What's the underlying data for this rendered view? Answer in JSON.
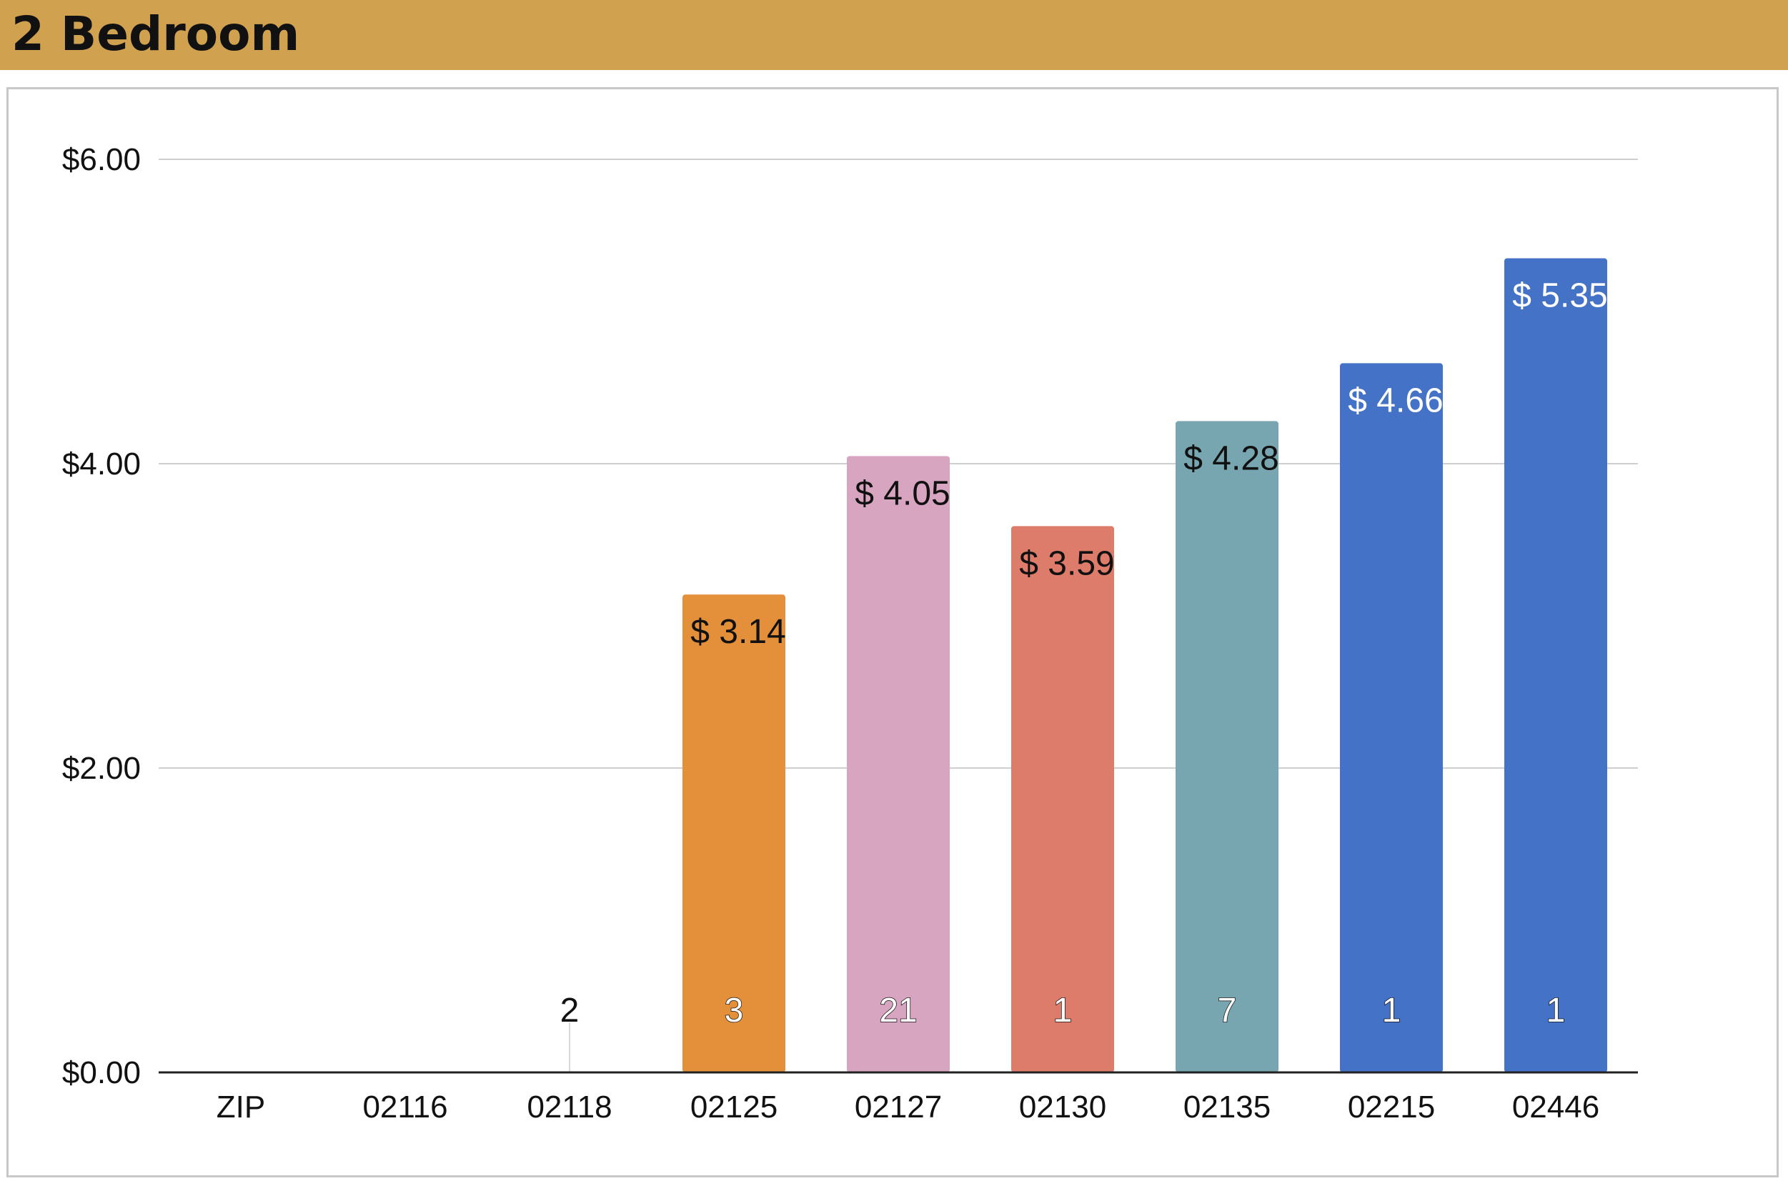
{
  "header": {
    "title": "2 Bedroom"
  },
  "chart_data": {
    "type": "bar",
    "title": "",
    "xlabel": "",
    "ylabel": "",
    "categories": [
      "ZIP",
      "02116",
      "02118",
      "02125",
      "02127",
      "02130",
      "02135",
      "02215",
      "02446"
    ],
    "values": [
      null,
      null,
      0,
      3.14,
      4.05,
      3.59,
      4.28,
      4.66,
      5.35
    ],
    "value_labels": [
      "",
      "",
      "",
      "$ 3.14",
      "$ 4.05",
      "$ 3.59",
      "$ 4.28",
      "$ 4.66",
      "$ 5.35"
    ],
    "count_labels": [
      "",
      "",
      "2",
      "3",
      "21",
      "1",
      "7",
      "1",
      "1"
    ],
    "colors": [
      "",
      "",
      "",
      "#E4903A",
      "#D8A5C0",
      "#DE7C6B",
      "#78A6B0",
      "#4472C6",
      "#4472C6"
    ],
    "value_label_colors": [
      "",
      "",
      "",
      "#111111",
      "#111111",
      "#111111",
      "#111111",
      "#ffffff",
      "#ffffff"
    ],
    "ylim": [
      0,
      6
    ],
    "yticks": [
      {
        "value": 0,
        "label": "$0.00"
      },
      {
        "value": 2,
        "label": "$2.00"
      },
      {
        "value": 4,
        "label": "$4.00"
      },
      {
        "value": 6,
        "label": "$6.00"
      }
    ],
    "grid": true,
    "legend": "none"
  }
}
